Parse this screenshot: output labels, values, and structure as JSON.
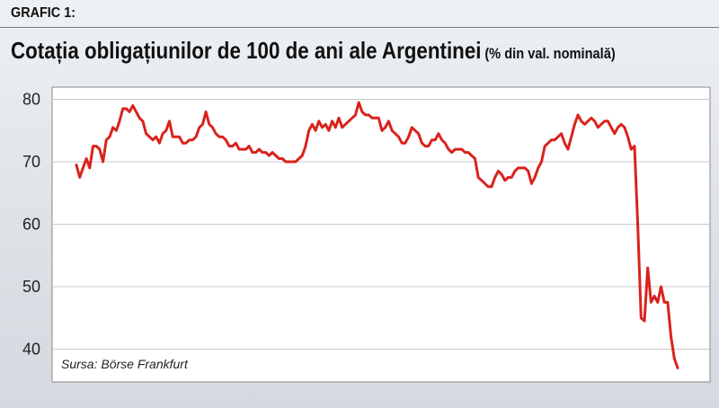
{
  "header": {
    "label": "GRAFIC 1:",
    "title": "Cotația obligațiunilor de 100 de ani ale Argentinei",
    "unit": "(% din val. nominală)"
  },
  "chart_data": {
    "type": "line",
    "title": "Cotația obligațiunilor de 100 de ani ale Argentinei",
    "subtitle": "(% din val. nominală)",
    "source": "Sursa: Börse Frankfurt",
    "xlabel": "",
    "ylabel": "",
    "ylim": [
      34,
      82
    ],
    "yticks": [
      40,
      50,
      60,
      70,
      80
    ],
    "grid": true,
    "line_color": "#d9231d",
    "series": [
      {
        "values": [
          69.5,
          67.5,
          69.0,
          70.5,
          69.0,
          72.5,
          72.5,
          72.0,
          70.0,
          73.5,
          74.0,
          75.5,
          75.0,
          76.5,
          78.5,
          78.5,
          78.0,
          79.0,
          78.0,
          77.0,
          76.5,
          74.5,
          74.0,
          73.5,
          74.0,
          73.0,
          74.5,
          75.0,
          76.5,
          74.0,
          74.0,
          74.0,
          73.0,
          73.0,
          73.5,
          73.5,
          74.0,
          75.5,
          76.0,
          78.0,
          76.0,
          75.5,
          74.5,
          74.0,
          74.0,
          73.5,
          72.5,
          72.5,
          73.0,
          72.0,
          72.0,
          72.0,
          72.5,
          71.5,
          71.5,
          72.0,
          71.5,
          71.5,
          71.0,
          71.5,
          71.0,
          70.5,
          70.5,
          70.0,
          70.0,
          70.0,
          70.0,
          70.5,
          71.0,
          72.5,
          75.0,
          76.0,
          75.0,
          76.5,
          75.5,
          76.0,
          75.0,
          76.5,
          75.5,
          77.0,
          75.5,
          76.0,
          76.5,
          77.0,
          77.5,
          79.5,
          78.0,
          77.5,
          77.5,
          77.0,
          77.0,
          77.0,
          75.0,
          75.5,
          76.5,
          75.0,
          74.5,
          74.0,
          73.0,
          73.0,
          74.0,
          75.5,
          75.0,
          74.5,
          73.0,
          72.5,
          72.5,
          73.5,
          73.5,
          74.5,
          73.5,
          73.0,
          72.0,
          71.5,
          72.0,
          72.0,
          72.0,
          71.5,
          71.5,
          71.0,
          70.5,
          67.5,
          67.0,
          66.5,
          66.0,
          66.0,
          67.5,
          68.5,
          68.0,
          67.0,
          67.5,
          67.5,
          68.5,
          69.0,
          69.0,
          69.0,
          68.5,
          66.5,
          67.5,
          69.0,
          70.0,
          72.5,
          73.0,
          73.5,
          73.5,
          74.0,
          74.5,
          73.0,
          72.0,
          74.0,
          76.0,
          77.5,
          76.5,
          76.0,
          76.5,
          77.0,
          76.5,
          75.5,
          76.0,
          76.5,
          76.5,
          75.5,
          74.5,
          75.5,
          76.0,
          75.5,
          74.0,
          72.0,
          72.5,
          60.0,
          45.0,
          44.5,
          53.0,
          47.5,
          48.5,
          47.5,
          50.0,
          47.5,
          47.5,
          42.0,
          38.5,
          37.0
        ]
      }
    ]
  }
}
